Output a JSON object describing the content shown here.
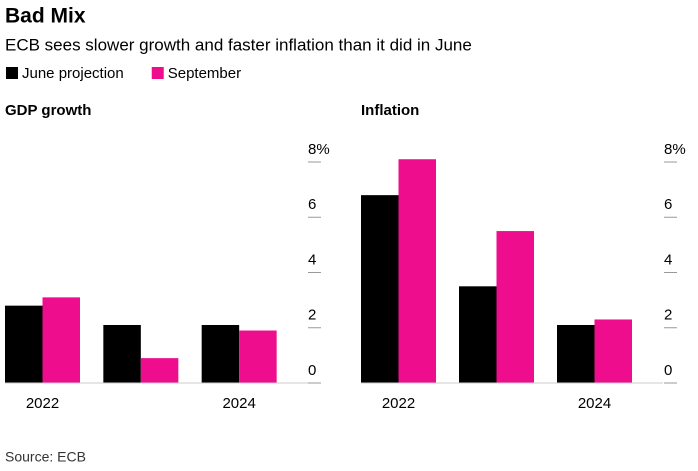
{
  "header": {
    "title": "Bad Mix",
    "subtitle": "ECB sees slower growth and faster inflation than it did in June"
  },
  "source": "Source: ECB",
  "chart_data": [
    {
      "type": "bar",
      "title": "GDP growth",
      "categories": [
        "2022",
        null,
        "2024"
      ],
      "series": [
        {
          "name": "June projection",
          "color": "#000000",
          "values": [
            2.8,
            2.1,
            2.1
          ]
        },
        {
          "name": "September",
          "color": "#ee0d8c",
          "values": [
            3.1,
            0.9,
            1.9
          ]
        }
      ],
      "ylim": [
        0,
        8
      ],
      "yticks": [
        0,
        2,
        4,
        6,
        {
          "value": 8,
          "label": "8%"
        }
      ]
    },
    {
      "type": "bar",
      "title": "Inflation",
      "categories": [
        "2022",
        null,
        "2024"
      ],
      "series": [
        {
          "color": "#000000",
          "values": [
            6.8,
            3.5,
            2.1
          ]
        },
        {
          "color": "#ee0d8c",
          "values": [
            8.1,
            5.5,
            2.3
          ]
        }
      ],
      "ylim": [
        0,
        8
      ],
      "yticks": [
        0,
        2,
        4,
        6,
        {
          "value": 8,
          "label": "8%"
        }
      ]
    }
  ]
}
